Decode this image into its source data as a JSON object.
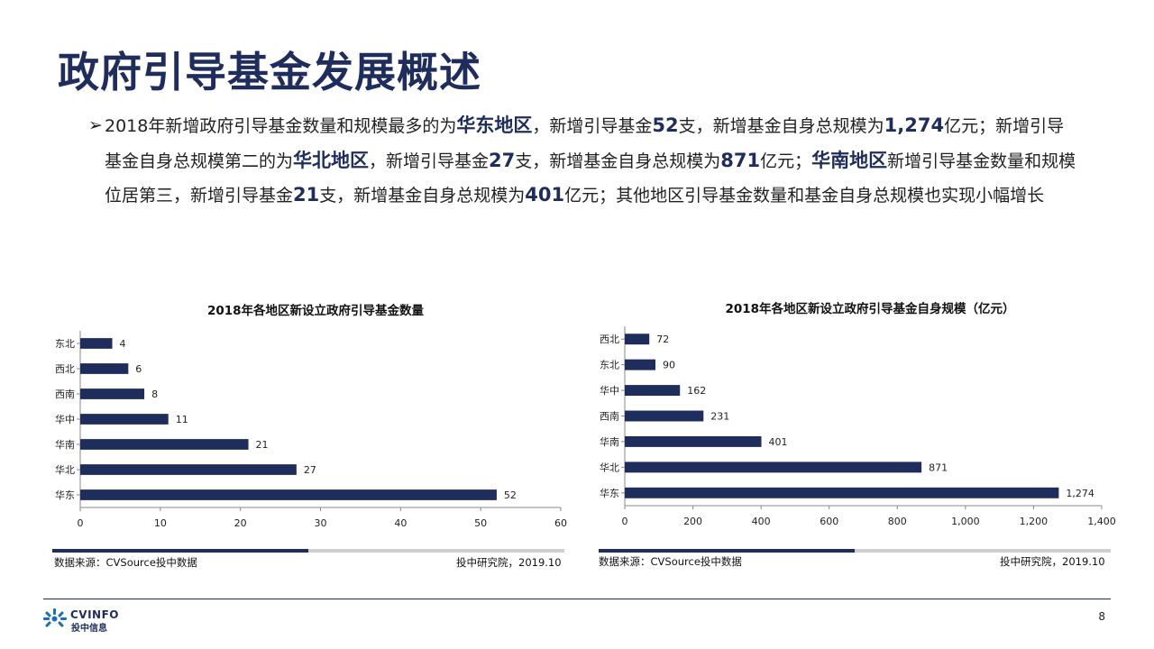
{
  "slide": {
    "title": "政府引导基金发展概述",
    "bullet": {
      "arrow": "➢",
      "segments": [
        "2018年新增政府引导基金数量和规模最多的为",
        "华东地区",
        "，新增引导基金",
        "52",
        "支，新增基金自身总规模为",
        "1,274",
        "亿元；新增引导基金自身总规模第二的为",
        "华北地区",
        "，新增引导基金",
        "27",
        "支，新增基金自身总规模为",
        "871",
        "亿元；",
        "华南地区",
        "新增引导基金数量和规模位居第三，新增引导基金",
        "21",
        "支，新增基金自身总规模为",
        "401",
        "亿元；其他地区引导基金数量和基金自身总规模也实现小幅增长"
      ]
    },
    "page_number": "8",
    "logo": {
      "en": "CVINFO",
      "cn": "投中信息"
    }
  },
  "colors": {
    "bar": "#1f2d5c",
    "title": "#1f2d5c",
    "source_light": "#cfcfcf"
  },
  "sources": [
    {
      "left": "数据来源：CVSource投中数据",
      "right": "投中研究院，2019.10"
    },
    {
      "left": "数据来源：CVSource投中数据",
      "right": "投中研究院，2019.10"
    }
  ],
  "chart_data": [
    {
      "type": "bar",
      "orientation": "horizontal",
      "title": "2018年各地区新设立政府引导基金数量",
      "categories": [
        "东北",
        "西北",
        "西南",
        "华中",
        "华南",
        "华北",
        "华东"
      ],
      "values": [
        4,
        6,
        8,
        11,
        21,
        27,
        52
      ],
      "value_labels": [
        "4",
        "6",
        "8",
        "11",
        "21",
        "27",
        "52"
      ],
      "xlim": [
        0,
        60
      ],
      "xticks": [
        "0",
        "10",
        "20",
        "30",
        "40",
        "50",
        "60"
      ],
      "grid": false
    },
    {
      "type": "bar",
      "orientation": "horizontal",
      "title": "2018年各地区新设立政府引导基金自身规模（亿元）",
      "categories": [
        "西北",
        "东北",
        "华中",
        "西南",
        "华南",
        "华北",
        "华东"
      ],
      "values": [
        72,
        90,
        162,
        231,
        401,
        871,
        1274
      ],
      "value_labels": [
        "72",
        "90",
        "162",
        "231",
        "401",
        "871",
        "1,274"
      ],
      "xlim": [
        0,
        1400
      ],
      "xticks": [
        "0",
        "200",
        "400",
        "600",
        "800",
        "1,000",
        "1,200",
        "1,400"
      ],
      "grid": false
    }
  ]
}
